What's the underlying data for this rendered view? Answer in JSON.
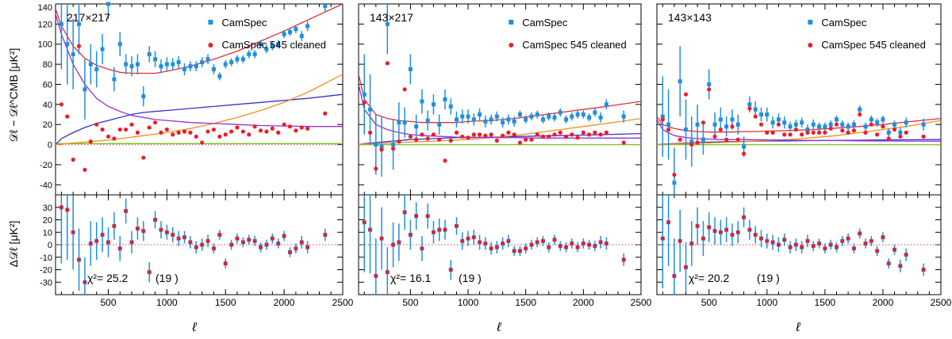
{
  "figure": {
    "xlabel": "ℓ",
    "top_ylabel": "𝒟ℓ − 𝒟ℓ^CMB [μK²]",
    "bottom_ylabel": "Δ𝒟ℓ [μK²]"
  },
  "colors": {
    "camspec": "#1f8fe0",
    "cleaned": "#ee1c25",
    "total": "#e0303a",
    "cib": "#ef8e1f",
    "ps": "#9b30d0",
    "ksz": "#3333cc",
    "dust": "#7fc31c",
    "zero": "#dd4060"
  },
  "chart_data": [
    {
      "type": "scatter",
      "panel_label": "217×217",
      "legend": [
        "CamSpec",
        "CamSpec 545 cleaned"
      ],
      "legend_position": "top-right",
      "chi2_text": "χ²= 25.2",
      "dof_text": "(19 )",
      "xlim": [
        50,
        2500
      ],
      "top_ylim": [
        -50,
        140
      ],
      "bottom_ylim": [
        -40,
        40
      ],
      "x_ticks": [
        500,
        1000,
        1500,
        2000,
        2500
      ],
      "top_y_ticks": [
        -40,
        -20,
        0,
        20,
        40,
        60,
        80,
        100,
        120,
        140
      ],
      "bottom_y_ticks": [
        -30,
        -20,
        -10,
        0,
        10,
        20,
        30
      ],
      "x": [
        100,
        150,
        200,
        250,
        300,
        350,
        400,
        450,
        500,
        550,
        600,
        650,
        700,
        750,
        800,
        850,
        900,
        950,
        1000,
        1050,
        1100,
        1150,
        1200,
        1250,
        1300,
        1350,
        1400,
        1450,
        1500,
        1550,
        1600,
        1650,
        1700,
        1750,
        1800,
        1850,
        1900,
        1950,
        2000,
        2050,
        2100,
        2150,
        2200,
        2350
      ],
      "camspec": [
        120,
        100,
        90,
        120,
        55,
        80,
        75,
        95,
        140,
        65,
        100,
        80,
        78,
        80,
        48,
        90,
        85,
        78,
        80,
        80,
        82,
        75,
        78,
        78,
        82,
        85,
        75,
        68,
        80,
        82,
        85,
        85,
        90,
        90,
        100,
        95,
        98,
        100,
        110,
        112,
        115,
        108,
        118,
        138
      ],
      "camspec_err": [
        45,
        40,
        35,
        30,
        30,
        20,
        18,
        15,
        15,
        12,
        12,
        10,
        10,
        10,
        10,
        8,
        8,
        7,
        7,
        6,
        6,
        6,
        5,
        5,
        5,
        5,
        5,
        4,
        4,
        4,
        4,
        4,
        4,
        4,
        4,
        4,
        4,
        4,
        4,
        4,
        4,
        5,
        5,
        6
      ],
      "cleaned": [
        40,
        28,
        -15,
        98,
        -25,
        3,
        20,
        15,
        8,
        6,
        15,
        15,
        20,
        12,
        -13,
        17,
        22,
        12,
        15,
        10,
        12,
        13,
        12,
        8,
        2,
        13,
        15,
        8,
        10,
        13,
        17,
        13,
        10,
        18,
        14,
        13,
        16,
        12,
        20,
        18,
        14,
        17,
        16,
        31
      ],
      "residual": [
        30,
        28,
        10,
        -12,
        -30,
        1,
        3,
        8,
        2,
        15,
        -3,
        27,
        2,
        13,
        11,
        -22,
        20,
        12,
        10,
        8,
        5,
        6,
        2,
        -2,
        0,
        3,
        -3,
        8,
        -15,
        0,
        5,
        2,
        4,
        3,
        -2,
        0,
        5,
        1,
        7,
        -6,
        -3,
        2,
        -2,
        8
      ],
      "residual_err": [
        45,
        40,
        30,
        25,
        20,
        18,
        15,
        14,
        12,
        11,
        10,
        10,
        9,
        9,
        8,
        8,
        7,
        7,
        6,
        6,
        6,
        5,
        5,
        5,
        5,
        5,
        4,
        4,
        4,
        4,
        4,
        4,
        4,
        4,
        4,
        4,
        4,
        4,
        4,
        4,
        4,
        5,
        5,
        5
      ],
      "model": {
        "l": [
          50,
          100,
          200,
          300,
          400,
          500,
          600,
          700,
          800,
          900,
          1000,
          1200,
          1400,
          1600,
          1800,
          2000,
          2200,
          2500
        ],
        "total": [
          135,
          118,
          98,
          86,
          79,
          75,
          72,
          71,
          71,
          71,
          73,
          78,
          85,
          93,
          103,
          113,
          124,
          140
        ],
        "cib": [
          0,
          0.5,
          1.5,
          2.5,
          3.5,
          4.5,
          6,
          7.5,
          9,
          10.5,
          12,
          16,
          21,
          27,
          34,
          42,
          52,
          70
        ],
        "ps": [
          130,
          110,
          80,
          60,
          46,
          38,
          33,
          29,
          27,
          25,
          24,
          22,
          21,
          20,
          19,
          18.5,
          18,
          18
        ],
        "ksz": [
          0,
          6,
          12,
          17,
          21,
          24,
          27,
          30,
          32,
          33,
          34,
          36,
          38,
          40,
          42,
          44,
          46,
          50
        ],
        "dust": [
          1,
          1,
          1,
          1,
          1,
          1,
          1,
          1,
          1,
          1,
          1,
          1,
          1,
          1,
          1,
          1,
          1,
          1
        ]
      }
    },
    {
      "type": "scatter",
      "panel_label": "143×217",
      "legend": [
        "CamSpec",
        "CamSpec 545 cleaned"
      ],
      "legend_position": "top-right",
      "chi2_text": "χ²= 16.1",
      "dof_text": "(19 )",
      "xlim": [
        50,
        2500
      ],
      "top_ylim": [
        -50,
        140
      ],
      "bottom_ylim": [
        -40,
        40
      ],
      "x_ticks": [
        500,
        1000,
        1500,
        2000,
        2500
      ],
      "top_y_ticks": [
        -40,
        -20,
        0,
        20,
        40,
        60,
        80,
        100,
        120,
        140
      ],
      "bottom_y_ticks": [
        -30,
        -20,
        -10,
        0,
        10,
        20,
        30
      ],
      "x": [
        100,
        150,
        200,
        250,
        300,
        350,
        400,
        450,
        500,
        550,
        600,
        650,
        700,
        750,
        800,
        850,
        900,
        950,
        1000,
        1050,
        1100,
        1150,
        1200,
        1250,
        1300,
        1350,
        1400,
        1450,
        1500,
        1550,
        1600,
        1650,
        1700,
        1750,
        1800,
        1850,
        1900,
        1950,
        2000,
        2050,
        2100,
        2150,
        2200,
        2350
      ],
      "camspec": [
        50,
        35,
        0,
        -2,
        120,
        0,
        22,
        22,
        75,
        18,
        43,
        24,
        40,
        20,
        45,
        38,
        25,
        28,
        28,
        25,
        30,
        23,
        25,
        28,
        22,
        25,
        23,
        30,
        25,
        28,
        30,
        25,
        28,
        27,
        32,
        25,
        28,
        30,
        30,
        27,
        32,
        27,
        40,
        28
      ],
      "camspec_err": [
        40,
        35,
        30,
        30,
        30,
        25,
        20,
        15,
        15,
        12,
        12,
        10,
        10,
        10,
        10,
        8,
        8,
        7,
        7,
        6,
        6,
        6,
        5,
        5,
        5,
        5,
        5,
        4,
        4,
        4,
        4,
        4,
        4,
        4,
        4,
        4,
        4,
        4,
        4,
        4,
        4,
        5,
        5,
        6
      ],
      "cleaned": [
        42,
        12,
        -24,
        -5,
        81,
        -4,
        3,
        55,
        8,
        5,
        10,
        6,
        10,
        5,
        -16,
        4,
        12,
        8,
        7,
        10,
        10,
        9,
        10,
        4,
        9,
        12,
        10,
        2,
        5,
        5,
        10,
        8,
        8,
        10,
        12,
        8,
        10,
        7,
        12,
        10,
        12,
        10,
        12,
        2
      ],
      "residual": [
        18,
        12,
        -25,
        5,
        -22,
        0,
        2,
        26,
        8,
        23,
        -3,
        23,
        10,
        12,
        12,
        -20,
        15,
        3,
        5,
        6,
        2,
        1,
        -3,
        -2,
        1,
        3,
        -5,
        -5,
        -3,
        0,
        2,
        3,
        -2,
        4,
        -1,
        -2,
        1,
        -2,
        1,
        0,
        -1,
        2,
        1,
        -12
      ],
      "residual_err": [
        40,
        35,
        30,
        25,
        20,
        18,
        15,
        14,
        12,
        11,
        10,
        10,
        9,
        9,
        8,
        8,
        7,
        7,
        6,
        6,
        6,
        5,
        5,
        5,
        5,
        5,
        4,
        4,
        4,
        4,
        4,
        4,
        4,
        4,
        4,
        4,
        4,
        4,
        4,
        4,
        4,
        5,
        5,
        5
      ],
      "model": {
        "l": [
          50,
          100,
          200,
          300,
          400,
          500,
          600,
          700,
          800,
          900,
          1000,
          1200,
          1400,
          1600,
          1800,
          2000,
          2200,
          2500
        ],
        "total": [
          70,
          45,
          30,
          26,
          24,
          23,
          22,
          22,
          22,
          22,
          23,
          24,
          26,
          29,
          32,
          35,
          38,
          43
        ],
        "cib": [
          0,
          0.5,
          1,
          1.5,
          2,
          2.5,
          3,
          3.5,
          4,
          4.5,
          5,
          7,
          9,
          12,
          15,
          18,
          21,
          26
        ],
        "ps": [
          60,
          35,
          20,
          15,
          12,
          10,
          9,
          8.5,
          8,
          7.5,
          7.5,
          7,
          7,
          6.5,
          6.5,
          6.5,
          6.5,
          6.5
        ],
        "ksz": [
          0,
          1,
          2,
          3,
          4,
          5,
          5.5,
          6,
          6.5,
          7,
          7,
          7.5,
          8,
          8.5,
          9,
          9.5,
          10,
          11
        ],
        "dust": [
          0,
          0,
          0,
          0,
          0,
          0,
          0,
          0,
          0,
          0,
          0,
          0,
          0,
          0,
          0,
          0,
          0,
          0
        ]
      }
    },
    {
      "type": "scatter",
      "panel_label": "143×143",
      "legend": [
        "CamSpec",
        "CamSpec 545 cleaned"
      ],
      "legend_position": "top-right",
      "chi2_text": "χ²= 20.2",
      "dof_text": "(19 )",
      "xlim": [
        50,
        2500
      ],
      "top_ylim": [
        -50,
        140
      ],
      "bottom_ylim": [
        -40,
        40
      ],
      "x_ticks": [
        500,
        1000,
        1500,
        2000,
        2500
      ],
      "top_y_ticks": [
        -40,
        -20,
        0,
        20,
        40,
        60,
        80,
        100,
        120,
        140
      ],
      "bottom_y_ticks": [
        -30,
        -20,
        -10,
        0,
        10,
        20,
        30
      ],
      "x": [
        100,
        150,
        200,
        250,
        300,
        350,
        400,
        450,
        500,
        550,
        600,
        650,
        700,
        750,
        800,
        850,
        900,
        950,
        1000,
        1050,
        1100,
        1150,
        1200,
        1250,
        1300,
        1350,
        1400,
        1450,
        1500,
        1550,
        1600,
        1650,
        1700,
        1750,
        1800,
        1850,
        1900,
        1950,
        2000,
        2050,
        2100,
        2150,
        2200,
        2350
      ],
      "camspec": [
        28,
        20,
        -38,
        63,
        15,
        3,
        20,
        5,
        60,
        20,
        25,
        18,
        25,
        20,
        -2,
        40,
        35,
        30,
        30,
        22,
        25,
        22,
        18,
        20,
        22,
        15,
        20,
        18,
        18,
        20,
        25,
        20,
        18,
        20,
        35,
        18,
        25,
        22,
        25,
        12,
        20,
        12,
        22,
        20
      ],
      "camspec_err": [
        40,
        35,
        35,
        35,
        30,
        25,
        20,
        15,
        15,
        12,
        12,
        10,
        10,
        10,
        10,
        8,
        8,
        7,
        7,
        6,
        6,
        6,
        5,
        5,
        5,
        5,
        5,
        4,
        4,
        4,
        4,
        4,
        4,
        4,
        4,
        4,
        4,
        4,
        4,
        4,
        4,
        5,
        5,
        6
      ],
      "cleaned": [
        25,
        15,
        -30,
        5,
        50,
        0,
        2,
        22,
        55,
        8,
        15,
        5,
        18,
        5,
        -9,
        36,
        28,
        20,
        12,
        12,
        20,
        10,
        10,
        15,
        10,
        12,
        12,
        12,
        12,
        16,
        20,
        14,
        12,
        14,
        30,
        12,
        20,
        10,
        18,
        6,
        15,
        8,
        12,
        8
      ],
      "residual": [
        5,
        18,
        -25,
        3,
        -18,
        1,
        15,
        5,
        14,
        11,
        10,
        12,
        8,
        10,
        22,
        12,
        8,
        5,
        3,
        2,
        0,
        4,
        -2,
        0,
        -2,
        3,
        -1,
        1,
        -3,
        0,
        -2,
        3,
        5,
        -3,
        9,
        1,
        3,
        -5,
        6,
        -15,
        -4,
        -17,
        -8,
        -20
      ],
      "residual_err": [
        40,
        35,
        30,
        25,
        20,
        18,
        15,
        14,
        12,
        11,
        10,
        10,
        9,
        9,
        8,
        8,
        7,
        7,
        6,
        6,
        6,
        5,
        5,
        5,
        5,
        5,
        4,
        4,
        4,
        4,
        4,
        4,
        4,
        4,
        4,
        4,
        4,
        4,
        4,
        4,
        4,
        5,
        5,
        5
      ],
      "model": {
        "l": [
          50,
          100,
          200,
          300,
          400,
          500,
          600,
          700,
          800,
          900,
          1000,
          1200,
          1400,
          1600,
          1800,
          2000,
          2200,
          2500
        ],
        "total": [
          28,
          20,
          16,
          14,
          13,
          12.5,
          12.5,
          12.5,
          13,
          13,
          13.5,
          14,
          15,
          16.5,
          18,
          20,
          22.5,
          26
        ],
        "cib": [
          0,
          0.3,
          0.6,
          1,
          1.3,
          1.7,
          2,
          2.5,
          3,
          3.5,
          4,
          5,
          7,
          9,
          12,
          15,
          18,
          24
        ],
        "ps": [
          25,
          15,
          9,
          7,
          6,
          5.5,
          5,
          5,
          5,
          4.8,
          4.6,
          4.4,
          4.2,
          4,
          3.8,
          3.6,
          3.5,
          3.4
        ],
        "ksz": [
          0,
          0.5,
          1,
          1.5,
          2,
          2.5,
          2.8,
          3,
          3.2,
          3.4,
          3.6,
          3.8,
          4,
          4.2,
          4.4,
          4.6,
          4.8,
          5
        ],
        "dust": [
          0,
          0,
          0,
          0,
          0,
          0,
          0,
          0,
          0,
          0,
          0,
          0,
          0,
          0,
          0,
          0,
          0,
          0
        ]
      }
    }
  ]
}
